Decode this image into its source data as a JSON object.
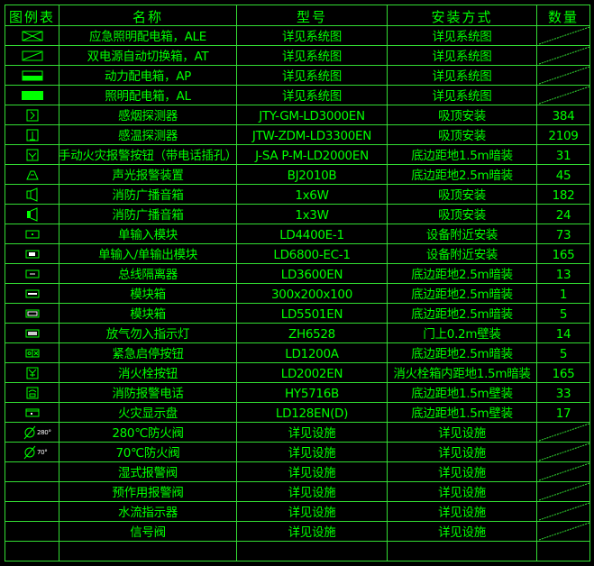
{
  "colors": {
    "line": "#33dd33",
    "text": "#00ff00",
    "background": "#000000"
  },
  "header": {
    "legend": "图例表",
    "name": "名称",
    "model": "型号",
    "install": "安装方式",
    "qty": "数量"
  },
  "rows": [
    {
      "icon": "box-x-icon",
      "name": "应急照明配电箱，ALE",
      "model": "详见系统图",
      "install": "详见系统图",
      "qty": null
    },
    {
      "icon": "box-diagonal-icon",
      "name": "双电源自动切换箱，AT",
      "model": "详见系统图",
      "install": "详见系统图",
      "qty": null
    },
    {
      "icon": "box-half-filled-icon",
      "name": "动力配电箱，AP",
      "model": "详见系统图",
      "install": "详见系统图",
      "qty": null
    },
    {
      "icon": "box-filled-icon",
      "name": "照明配电箱，AL",
      "model": "详见系统图",
      "install": "详见系统图",
      "qty": null
    },
    {
      "icon": "smoke-detector-icon",
      "name": "感烟探测器",
      "model": "JTY-GM-LD3000EN",
      "install": "吸顶安装",
      "qty": "384"
    },
    {
      "icon": "heat-detector-icon",
      "name": "感温探测器",
      "model": "JTW-ZDM-LD3300EN",
      "install": "吸顶安装",
      "qty": "2109"
    },
    {
      "icon": "manual-alarm-button-icon",
      "name": "手动火灾报警按钮（带电话插孔）",
      "model": "J-SA P-M-LD2000EN",
      "install": "底边距地1.5m暗装",
      "qty": "31"
    },
    {
      "icon": "sounder-strobe-icon",
      "name": "声光报警装置",
      "model": "BJ2010B",
      "install": "底边距地2.5m暗装",
      "qty": "45"
    },
    {
      "icon": "speaker-icon",
      "name": "消防广播音箱",
      "model": "1x6W",
      "install": "吸顶安装",
      "qty": "182"
    },
    {
      "icon": "speaker-filled-icon",
      "name": "消防广播音箱",
      "model": "1x3W",
      "install": "吸顶安装",
      "qty": "24"
    },
    {
      "icon": "input-module-icon",
      "name": "单输入模块",
      "model": "LD4400E-1",
      "install": "设备附近安装",
      "qty": "73"
    },
    {
      "icon": "io-module-icon",
      "name": "单输入/单输出模块",
      "model": "LD6800-EC-1",
      "install": "设备附近安装",
      "qty": "165"
    },
    {
      "icon": "isolator-icon",
      "name": "总线隔离器",
      "model": "LD3600EN",
      "install": "底边距地2.5m暗装",
      "qty": "13"
    },
    {
      "icon": "module-box-icon",
      "name": "模块箱",
      "model": "300x200x100",
      "install": "底边距地2.5m暗装",
      "qty": "1"
    },
    {
      "icon": "module-box-2-icon",
      "name": "模块箱",
      "model": "LD5501EN",
      "install": "底边距地2.5m暗装",
      "qty": "5"
    },
    {
      "icon": "no-entry-light-icon",
      "name": "放气勿入指示灯",
      "model": "ZH6528",
      "install": "门上0.2m壁装",
      "qty": "14"
    },
    {
      "icon": "emergency-stop-icon",
      "name": "紧急启停按钮",
      "model": "LD1200A",
      "install": "底边距地2.5m暗装",
      "qty": "5"
    },
    {
      "icon": "hydrant-button-icon",
      "name": "消火栓按钮",
      "model": "LD2002EN",
      "install": "消火栓箱内距地1.5m暗装",
      "qty": "165"
    },
    {
      "icon": "fire-phone-icon",
      "name": "消防报警电话",
      "model": "HY5716B",
      "install": "底边距地1.5m壁装",
      "qty": "33"
    },
    {
      "icon": "fire-display-panel-icon",
      "name": "火灾显示盘",
      "model": "LD128EN(D)",
      "install": "底边距地1.5m壁装",
      "qty": "17"
    },
    {
      "icon": "damper-280-icon",
      "icon_label": "280°",
      "name": "280℃防火阀",
      "model": "详见设施",
      "install": "详见设施",
      "qty": null
    },
    {
      "icon": "damper-70-icon",
      "icon_label": "70°",
      "name": "70℃防火阀",
      "model": "详见设施",
      "install": "详见设施",
      "qty": null
    },
    {
      "icon": null,
      "name": "湿式报警阀",
      "model": "详见设施",
      "install": "详见设施",
      "qty": null
    },
    {
      "icon": null,
      "name": "预作用报警阀",
      "model": "详见设施",
      "install": "详见设施",
      "qty": null
    },
    {
      "icon": null,
      "name": "水流指示器",
      "model": "详见设施",
      "install": "详见设施",
      "qty": null
    },
    {
      "icon": null,
      "name": "信号阀",
      "model": "详见设施",
      "install": "详见设施",
      "qty": null
    },
    {
      "icon": null,
      "name": "",
      "model": "",
      "install": "",
      "qty": ""
    }
  ]
}
